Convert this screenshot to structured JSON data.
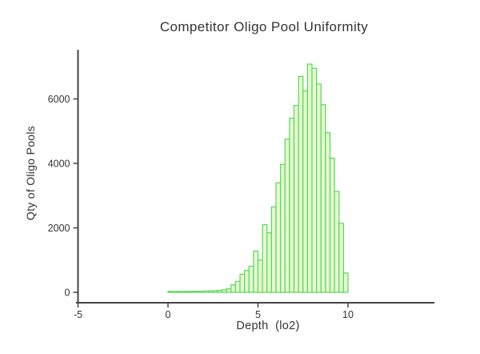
{
  "title": "Competitor Oligo Pool Uniformity",
  "chart_data": {
    "type": "bar",
    "subtype": "histogram",
    "title": "Competitor Oligo Pool Uniformity",
    "xlabel": "Depth  (lo2)",
    "ylabel": "Qty of Oligo Pools",
    "bin_start": 0,
    "bin_width": 0.25,
    "counts": [
      30,
      25,
      30,
      25,
      30,
      30,
      35,
      30,
      40,
      45,
      50,
      60,
      80,
      110,
      230,
      340,
      560,
      680,
      810,
      1280,
      1000,
      2100,
      1850,
      2650,
      3400,
      3970,
      4750,
      5400,
      5800,
      6700,
      6250,
      7080,
      6950,
      6460,
      5820,
      4950,
      4160,
      3130,
      2140,
      600
    ],
    "xticks": [
      -5,
      0,
      5,
      10
    ],
    "yticks": [
      0,
      2000,
      4000,
      6000
    ],
    "xlim": [
      -5,
      14.8
    ],
    "ylim": [
      0,
      7500
    ],
    "grid": false,
    "legend": false,
    "colors": {
      "bar_fill": "#e6f8d2",
      "bar_stroke": "#57d957",
      "axis": "#444444",
      "text": "#333333",
      "background": "#ffffff"
    }
  }
}
